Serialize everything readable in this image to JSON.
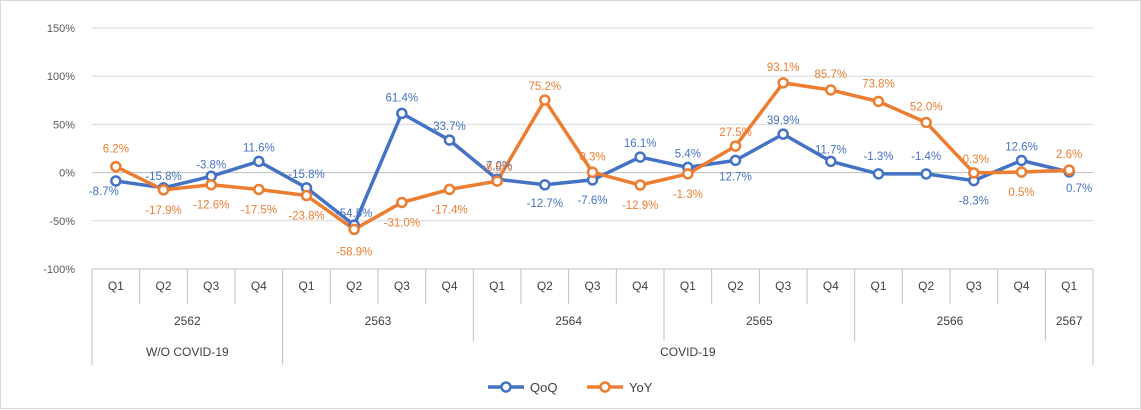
{
  "chart_data": {
    "type": "line",
    "title": "",
    "xlabel": "",
    "ylabel": "",
    "ylim": [
      -100,
      150
    ],
    "y_ticks": [
      "150%",
      "100%",
      "50%",
      "0%",
      "-50%",
      "-100%"
    ],
    "y_tick_values": [
      150,
      100,
      50,
      0,
      -50,
      -100
    ],
    "grid": "horizontal",
    "legend": "bottom",
    "categories": [
      "Q1",
      "Q2",
      "Q3",
      "Q4",
      "Q1",
      "Q2",
      "Q3",
      "Q4",
      "Q1",
      "Q2",
      "Q3",
      "Q4",
      "Q1",
      "Q2",
      "Q3",
      "Q4",
      "Q1",
      "Q2",
      "Q3",
      "Q4",
      "Q1"
    ],
    "years": [
      {
        "label": "2562",
        "count": 4
      },
      {
        "label": "2563",
        "count": 4
      },
      {
        "label": "2564",
        "count": 4
      },
      {
        "label": "2565",
        "count": 4
      },
      {
        "label": "2566",
        "count": 4
      },
      {
        "label": "2567",
        "count": 1
      }
    ],
    "periods": [
      {
        "label": "W/O COVID-19",
        "count": 4
      },
      {
        "label": "COVID-19",
        "count": 17
      }
    ],
    "series": [
      {
        "name": "QoQ",
        "color": "#4472c4",
        "values": [
          -8.7,
          -15.8,
          -3.8,
          11.6,
          -15.8,
          -54.5,
          61.4,
          33.7,
          -7.0,
          -12.7,
          -7.6,
          16.1,
          5.4,
          12.7,
          39.9,
          11.7,
          -1.3,
          -1.4,
          -8.3,
          12.6,
          0.7
        ],
        "labels": [
          "-8.7%",
          "-15.8%",
          "-3.8%",
          "11.6%",
          "-15.8%",
          "-54.5%",
          "61.4%",
          "33.7%",
          "-7.0%",
          "-12.7%",
          "-7.6%",
          "16.1%",
          "5.4%",
          "12.7%",
          "39.9%",
          "11.7%",
          "-1.3%",
          "-1.4%",
          "-8.3%",
          "12.6%",
          "0.7%"
        ]
      },
      {
        "name": "YoY",
        "color": "#ed7d31",
        "values": [
          6.2,
          -17.9,
          -12.6,
          -17.5,
          -23.8,
          -58.9,
          -31.0,
          -17.4,
          -8.8,
          75.2,
          0.3,
          -12.9,
          -1.3,
          27.5,
          93.1,
          85.7,
          73.8,
          52.0,
          -0.3,
          0.5,
          2.6
        ],
        "labels": [
          "6.2%",
          "-17.9%",
          "-12.6%",
          "-17.5%",
          "-23.8%",
          "-58.9%",
          "-31.0%",
          "-17.4%",
          "-8.8%",
          "75.2%",
          "0.3%",
          "-12.9%",
          "-1.3%",
          "27.5%",
          "93.1%",
          "85.7%",
          "73.8%",
          "52.0%",
          "-0.3%",
          "0.5%",
          "2.6%"
        ]
      }
    ]
  }
}
